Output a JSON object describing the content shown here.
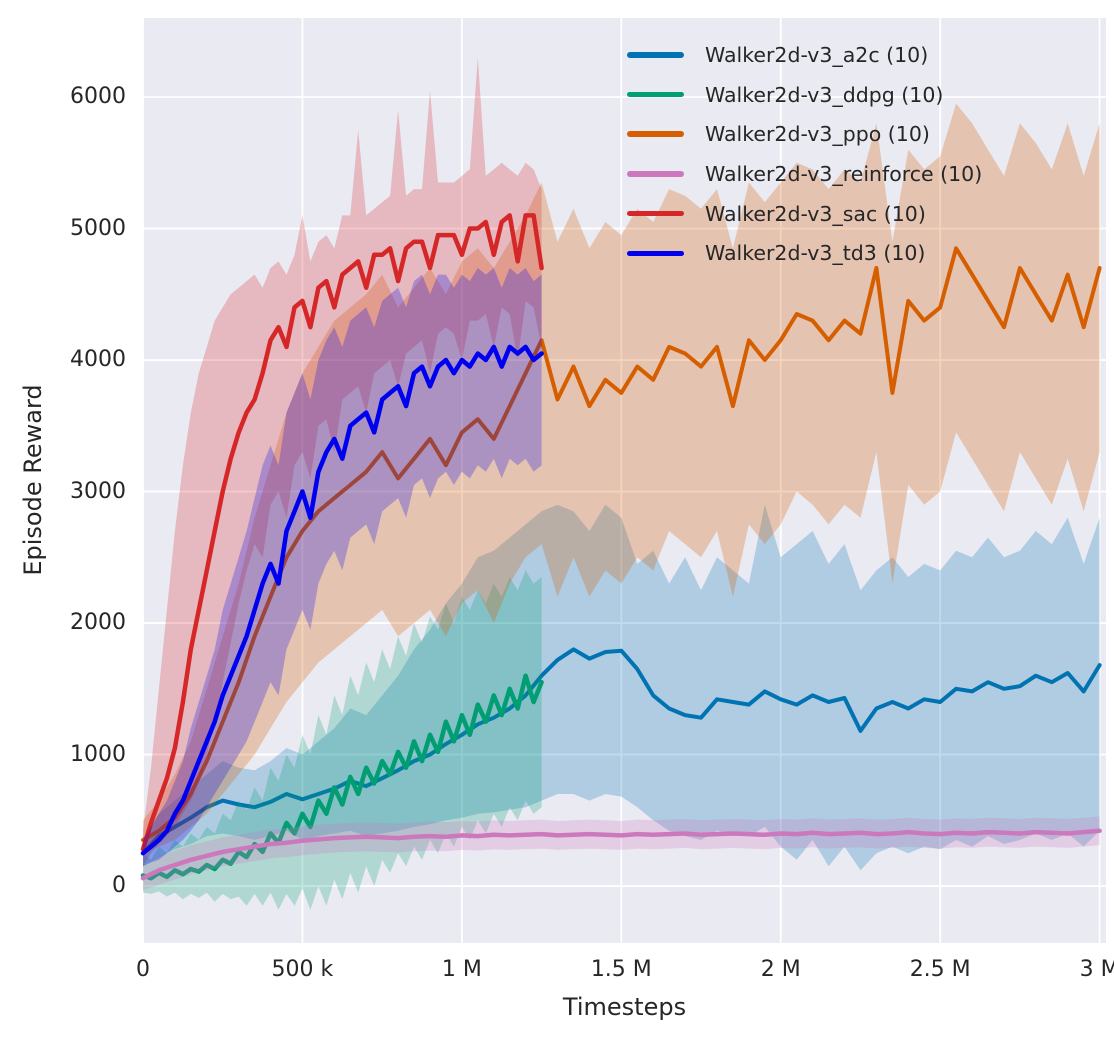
{
  "chart_data": {
    "type": "line",
    "title": "",
    "xlabel": "Timesteps",
    "ylabel": "Episode Reward",
    "grid": true,
    "legend_position": "upper right",
    "background": "#eaeaf2",
    "figure_background": "#ffffff",
    "grid_color": "#ffffff",
    "text_color": "#262626",
    "xlim": [
      0,
      3020000
    ],
    "ylim": [
      -433,
      6601
    ],
    "xticks": [
      {
        "v": 0,
        "label": "0"
      },
      {
        "v": 500000,
        "label": "500 k"
      },
      {
        "v": 1000000,
        "label": "1 M"
      },
      {
        "v": 1500000,
        "label": "1.5 M"
      },
      {
        "v": 2000000,
        "label": "2 M"
      },
      {
        "v": 2500000,
        "label": "2.5 M"
      },
      {
        "v": 3000000,
        "label": "3 M"
      }
    ],
    "yticks": [
      {
        "v": 0,
        "label": "0"
      },
      {
        "v": 1000,
        "label": "1000"
      },
      {
        "v": 2000,
        "label": "2000"
      },
      {
        "v": 3000,
        "label": "3000"
      },
      {
        "v": 4000,
        "label": "4000"
      },
      {
        "v": 5000,
        "label": "5000"
      },
      {
        "v": 6000,
        "label": "6000"
      }
    ],
    "series": [
      {
        "name": "a2c",
        "legend_label": "Walker2d-v3_a2c (10)",
        "color": "#0173b2",
        "line_width": 4,
        "band_alpha": 0.25,
        "x_start_k": 0,
        "x_step_k": 50,
        "mean": [
          250,
          380,
          450,
          520,
          600,
          650,
          620,
          600,
          640,
          700,
          660,
          700,
          740,
          800,
          760,
          820,
          880,
          950,
          1000,
          1080,
          1150,
          1230,
          1280,
          1350,
          1450,
          1600,
          1720,
          1800,
          1730,
          1780,
          1790,
          1650,
          1450,
          1350,
          1300,
          1280,
          1420,
          1400,
          1380,
          1480,
          1420,
          1380,
          1450,
          1400,
          1430,
          1180,
          1350,
          1400,
          1350,
          1420,
          1400,
          1500,
          1480,
          1550,
          1500,
          1520,
          1600,
          1550,
          1620,
          1480,
          1680
        ],
        "lo": [
          150,
          220,
          280,
          320,
          380,
          400,
          380,
          350,
          380,
          420,
          350,
          380,
          400,
          420,
          380,
          400,
          420,
          450,
          470,
          500,
          520,
          550,
          560,
          580,
          600,
          650,
          700,
          700,
          650,
          700,
          680,
          600,
          500,
          420,
          380,
          350,
          420,
          400,
          380,
          450,
          300,
          200,
          350,
          150,
          300,
          120,
          250,
          300,
          250,
          300,
          280,
          350,
          300,
          380,
          320,
          350,
          400,
          350,
          400,
          300,
          420
        ],
        "hi": [
          350,
          550,
          650,
          750,
          850,
          950,
          900,
          880,
          950,
          1050,
          1000,
          1100,
          1200,
          1350,
          1300,
          1450,
          1600,
          1800,
          1950,
          2150,
          2300,
          2500,
          2550,
          2650,
          2750,
          2850,
          2900,
          2850,
          2700,
          2900,
          2800,
          2450,
          2550,
          2300,
          2500,
          2250,
          2500,
          2400,
          2300,
          2900,
          2500,
          2600,
          2700,
          2450,
          2600,
          2250,
          2400,
          2500,
          2350,
          2450,
          2400,
          2550,
          2500,
          2650,
          2500,
          2550,
          2700,
          2600,
          2800,
          2450,
          2800
        ]
      },
      {
        "name": "ddpg",
        "legend_label": "Walker2d-v3_ddpg (10)",
        "color": "#029e73",
        "line_width": 4.5,
        "band_alpha": 0.25,
        "x_start_k": 0,
        "x_step_k": 25,
        "mean": [
          80,
          60,
          100,
          70,
          120,
          90,
          130,
          110,
          160,
          130,
          200,
          170,
          260,
          220,
          320,
          260,
          400,
          330,
          480,
          400,
          550,
          450,
          650,
          550,
          750,
          620,
          830,
          700,
          900,
          780,
          950,
          850,
          1020,
          900,
          1100,
          950,
          1150,
          1020,
          1250,
          1100,
          1300,
          1150,
          1380,
          1250,
          1450,
          1300,
          1500,
          1350,
          1600,
          1400,
          1550
        ],
        "lo": [
          -50,
          -60,
          -40,
          -80,
          -50,
          -100,
          -60,
          -90,
          -50,
          -120,
          -60,
          -100,
          -80,
          -150,
          -60,
          -150,
          -50,
          -180,
          -60,
          -150,
          -20,
          -180,
          0,
          -150,
          50,
          -100,
          100,
          -50,
          150,
          0,
          200,
          100,
          250,
          150,
          300,
          200,
          350,
          250,
          400,
          300,
          450,
          350,
          500,
          400,
          550,
          450,
          600,
          500,
          650,
          550,
          600
        ],
        "hi": [
          250,
          200,
          300,
          250,
          350,
          300,
          400,
          350,
          450,
          400,
          550,
          500,
          650,
          580,
          750,
          650,
          900,
          800,
          1000,
          900,
          1150,
          1000,
          1300,
          1150,
          1450,
          1300,
          1600,
          1450,
          1700,
          1550,
          1800,
          1650,
          1900,
          1750,
          2000,
          1850,
          2050,
          1950,
          2150,
          2000,
          2200,
          2100,
          2250,
          2150,
          2300,
          2200,
          2350,
          2250,
          2400,
          2300,
          2350
        ]
      },
      {
        "name": "ppo",
        "legend_label": "Walker2d-v3_ppo (10)",
        "color": "#d55e00",
        "line_width": 4,
        "band_alpha": 0.27,
        "x_start_k": 0,
        "x_step_k": 50,
        "mean": [
          350,
          420,
          520,
          700,
          950,
          1250,
          1550,
          1900,
          2200,
          2500,
          2700,
          2850,
          2950,
          3050,
          3150,
          3300,
          3100,
          3250,
          3400,
          3200,
          3450,
          3550,
          3400,
          3650,
          3900,
          4150,
          3700,
          3950,
          3650,
          3850,
          3750,
          3950,
          3850,
          4100,
          4050,
          3950,
          4100,
          3650,
          4150,
          4000,
          4150,
          4350,
          4300,
          4150,
          4300,
          4200,
          4700,
          3750,
          4450,
          4300,
          4400,
          4850,
          4650,
          4450,
          4250,
          4700,
          4500,
          4300,
          4650,
          4250,
          4700
        ],
        "lo": [
          250,
          300,
          350,
          450,
          550,
          700,
          850,
          1000,
          1200,
          1400,
          1550,
          1700,
          1800,
          1900,
          2000,
          2100,
          1900,
          2000,
          2100,
          1900,
          2150,
          2250,
          2000,
          2300,
          2500,
          2600,
          2200,
          2500,
          2200,
          2400,
          2300,
          2500,
          2400,
          2700,
          2600,
          2500,
          2700,
          2200,
          2750,
          2600,
          2750,
          3000,
          2900,
          2750,
          2900,
          2800,
          3300,
          2300,
          3050,
          2900,
          3000,
          3450,
          3250,
          3050,
          2850,
          3300,
          3100,
          2900,
          3250,
          2850,
          3300
        ],
        "hi": [
          500,
          650,
          850,
          1100,
          1500,
          1900,
          2300,
          2800,
          3200,
          3600,
          3900,
          4100,
          4300,
          4400,
          4500,
          4650,
          4400,
          4550,
          4700,
          4500,
          4750,
          4850,
          4700,
          4900,
          5100,
          5350,
          4900,
          5150,
          4850,
          5050,
          4950,
          5150,
          5050,
          5300,
          5250,
          5150,
          5300,
          4850,
          5350,
          5200,
          5350,
          5500,
          5450,
          5300,
          5450,
          5350,
          5800,
          4900,
          5600,
          5450,
          5550,
          5950,
          5800,
          5600,
          5400,
          5800,
          5650,
          5450,
          5800,
          5400,
          5800
        ]
      },
      {
        "name": "reinforce",
        "legend_label": "Walker2d-v3_reinforce (10)",
        "color": "#cc78bc",
        "line_width": 4.5,
        "band_alpha": 0.25,
        "x_start_k": 0,
        "x_step_k": 50,
        "mean": [
          60,
          120,
          160,
          200,
          230,
          260,
          280,
          300,
          320,
          330,
          345,
          355,
          365,
          370,
          375,
          370,
          365,
          375,
          380,
          375,
          385,
          380,
          390,
          385,
          390,
          395,
          385,
          390,
          395,
          390,
          385,
          395,
          390,
          395,
          400,
          390,
          395,
          400,
          395,
          390,
          400,
          395,
          405,
          395,
          400,
          405,
          395,
          400,
          410,
          400,
          395,
          405,
          400,
          410,
          405,
          400,
          410,
          405,
          400,
          410,
          420
        ],
        "lo": [
          -30,
          10,
          50,
          90,
          120,
          150,
          170,
          190,
          210,
          220,
          235,
          245,
          255,
          260,
          265,
          260,
          255,
          265,
          270,
          265,
          275,
          270,
          280,
          275,
          280,
          285,
          275,
          280,
          285,
          280,
          275,
          285,
          280,
          285,
          290,
          280,
          285,
          290,
          285,
          280,
          290,
          285,
          295,
          285,
          290,
          295,
          285,
          290,
          300,
          290,
          285,
          295,
          290,
          300,
          295,
          290,
          300,
          295,
          290,
          300,
          310
        ],
        "hi": [
          150,
          230,
          270,
          310,
          340,
          370,
          390,
          410,
          430,
          440,
          455,
          465,
          475,
          480,
          485,
          480,
          475,
          485,
          490,
          485,
          495,
          490,
          500,
          495,
          500,
          505,
          495,
          500,
          505,
          500,
          495,
          505,
          500,
          505,
          510,
          500,
          505,
          510,
          505,
          500,
          510,
          505,
          515,
          505,
          510,
          515,
          505,
          510,
          520,
          510,
          505,
          515,
          510,
          520,
          515,
          510,
          520,
          515,
          510,
          520,
          530
        ]
      },
      {
        "name": "sac",
        "legend_label": "Walker2d-v3_sac (10)",
        "color": "#d62728",
        "line_width": 4.5,
        "band_alpha": 0.25,
        "x_start_k": 0,
        "x_step_k": 25,
        "mean": [
          280,
          480,
          650,
          820,
          1050,
          1400,
          1800,
          2100,
          2400,
          2700,
          3000,
          3250,
          3450,
          3600,
          3700,
          3900,
          4150,
          4250,
          4100,
          4400,
          4450,
          4250,
          4550,
          4600,
          4400,
          4650,
          4700,
          4750,
          4550,
          4800,
          4800,
          4850,
          4600,
          4850,
          4900,
          4900,
          4700,
          4950,
          4950,
          4950,
          4800,
          5000,
          5000,
          5050,
          4800,
          5050,
          5100,
          4750,
          5100,
          5100,
          4700
        ],
        "lo": [
          150,
          250,
          320,
          380,
          450,
          550,
          650,
          800,
          1000,
          1250,
          1550,
          1850,
          2150,
          2400,
          2600,
          2500,
          2900,
          3000,
          2800,
          3200,
          3300,
          3100,
          3500,
          3550,
          3300,
          3700,
          3750,
          3800,
          3600,
          3900,
          3950,
          4000,
          3800,
          4050,
          4100,
          4150,
          3900,
          4200,
          4250,
          4200,
          4000,
          4300,
          4300,
          4350,
          4100,
          4400,
          4350,
          4000,
          4450,
          4400,
          4100
        ],
        "hi": [
          420,
          900,
          1500,
          2100,
          2700,
          3200,
          3600,
          3900,
          4100,
          4300,
          4400,
          4500,
          4550,
          4600,
          4650,
          4550,
          4700,
          4750,
          4650,
          4800,
          5100,
          4750,
          4900,
          4950,
          4850,
          5100,
          5100,
          5750,
          5100,
          5150,
          5200,
          5250,
          5900,
          5250,
          5300,
          5300,
          6050,
          5350,
          5350,
          5350,
          5400,
          5450,
          6300,
          5400,
          5450,
          5500,
          5450,
          5400,
          5500,
          5450,
          5300
        ]
      },
      {
        "name": "td3",
        "legend_label": "Walker2d-v3_td3 (10)",
        "color": "#0000f0",
        "line_width": 4.5,
        "band_alpha": 0.25,
        "x_start_k": 0,
        "x_step_k": 25,
        "mean": [
          250,
          300,
          350,
          420,
          550,
          650,
          800,
          950,
          1100,
          1250,
          1450,
          1600,
          1750,
          1900,
          2100,
          2300,
          2450,
          2300,
          2700,
          2850,
          3000,
          2800,
          3150,
          3300,
          3400,
          3250,
          3500,
          3550,
          3600,
          3450,
          3700,
          3750,
          3800,
          3650,
          3900,
          3950,
          3800,
          3950,
          4000,
          3900,
          4000,
          3950,
          4050,
          4000,
          4100,
          3950,
          4100,
          4050,
          4100,
          4000,
          4050
        ],
        "lo": [
          150,
          180,
          200,
          250,
          300,
          350,
          420,
          500,
          600,
          700,
          800,
          900,
          1000,
          1100,
          1250,
          1400,
          1550,
          1450,
          1800,
          1950,
          2100,
          1950,
          2300,
          2450,
          2550,
          2400,
          2650,
          2700,
          2750,
          2600,
          2850,
          2900,
          2950,
          2800,
          3050,
          3100,
          2950,
          3100,
          3150,
          3050,
          3150,
          3100,
          3200,
          3150,
          3250,
          3100,
          3250,
          3200,
          3250,
          3150,
          3200
        ],
        "hi": [
          350,
          450,
          550,
          650,
          800,
          950,
          1200,
          1400,
          1600,
          1800,
          2100,
          2300,
          2500,
          2700,
          2950,
          3200,
          3350,
          3200,
          3600,
          3750,
          3900,
          3700,
          4000,
          4150,
          4250,
          4100,
          4300,
          4350,
          4400,
          4250,
          4450,
          4500,
          4550,
          4400,
          4600,
          4650,
          4500,
          4650,
          4650,
          4550,
          4650,
          4600,
          4700,
          4650,
          4700,
          4550,
          4700,
          4650,
          4700,
          4600,
          4650
        ]
      }
    ]
  }
}
